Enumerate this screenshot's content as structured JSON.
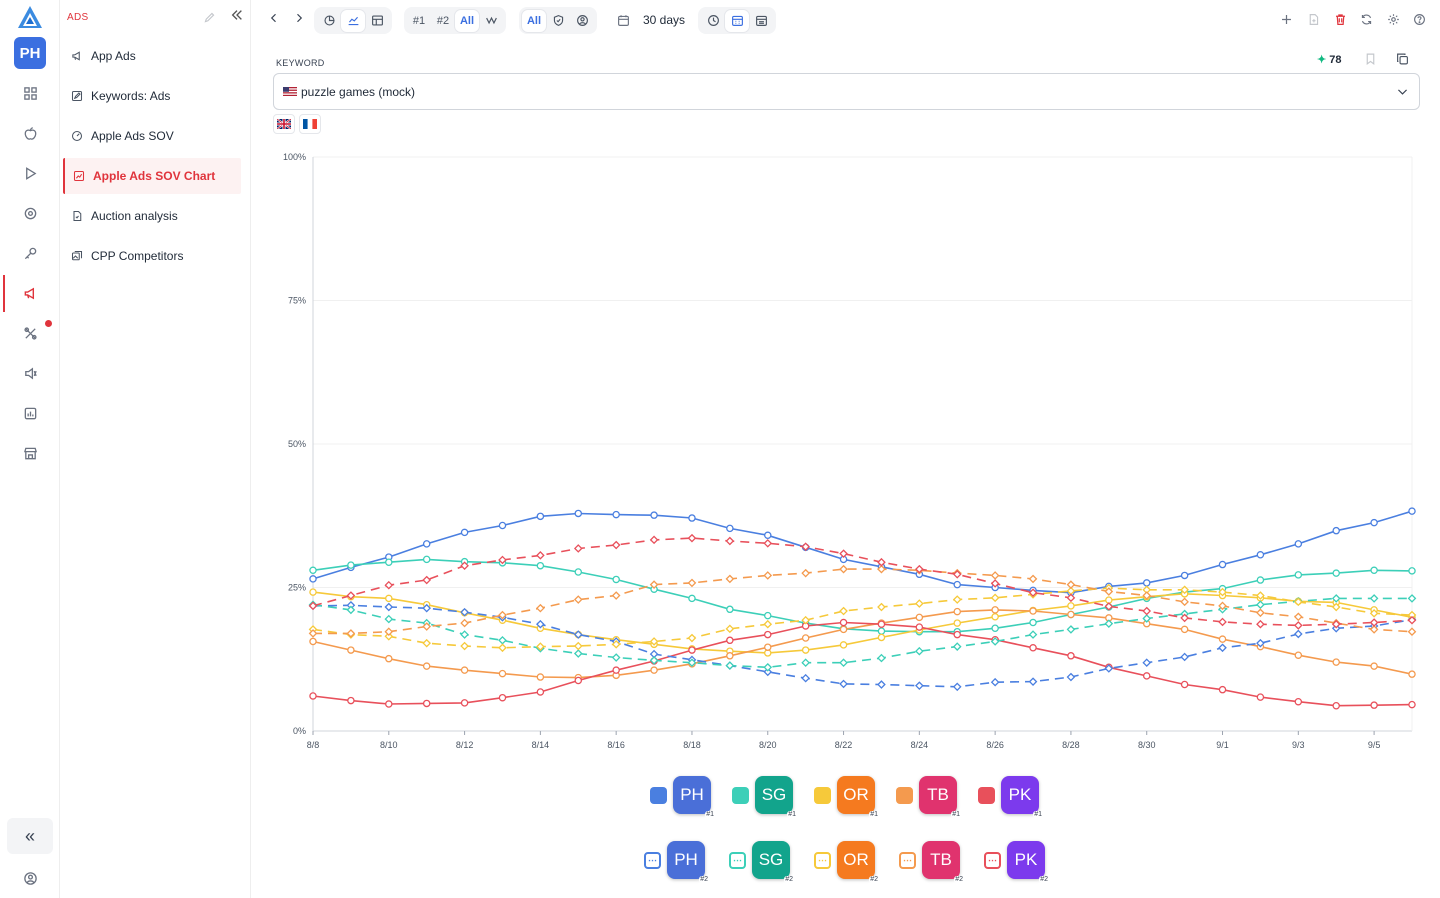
{
  "rail": {
    "avatar": "PH",
    "icons": [
      "grid-icon",
      "apple-icon",
      "play-icon",
      "eye-icon",
      "key-icon",
      "megaphone-icon",
      "tools-icon",
      "speaker-icon",
      "report-icon",
      "store-icon"
    ],
    "collapse_label": "«"
  },
  "sidebar": {
    "title": "ADS",
    "items": [
      {
        "label": "App Ads",
        "icon": "megaphone-icon"
      },
      {
        "label": "Keywords: Ads",
        "icon": "edit-box-icon"
      },
      {
        "label": "Apple Ads SOV",
        "icon": "gauge-icon"
      },
      {
        "label": "Apple Ads SOV Chart",
        "icon": "chart-box-icon",
        "active": true
      },
      {
        "label": "Auction analysis",
        "icon": "document-icon"
      },
      {
        "label": "CPP Competitors",
        "icon": "gallery-icon"
      }
    ]
  },
  "toolbar": {
    "rank_buttons": [
      "#1",
      "#2",
      "All"
    ],
    "filter_all": "All",
    "range_label": "30 days"
  },
  "keyword": {
    "label": "KEYWORD",
    "score": "78",
    "value": "puzzle games (mock)"
  },
  "colors": {
    "PH": "#4a7fe0",
    "SG": "#3ccfb8",
    "OR": "#f6c93a",
    "TB": "#f49a4e",
    "PK": "#e8505b"
  },
  "chart_data": {
    "type": "line",
    "x": [
      "8/8",
      "8/9",
      "8/10",
      "8/11",
      "8/12",
      "8/13",
      "8/14",
      "8/15",
      "8/16",
      "8/17",
      "8/18",
      "8/19",
      "8/20",
      "8/21",
      "8/22",
      "8/23",
      "8/24",
      "8/25",
      "8/26",
      "8/27",
      "8/28",
      "8/29",
      "8/30",
      "8/31",
      "9/1",
      "9/2",
      "9/3",
      "9/4",
      "9/5",
      "9/6"
    ],
    "x_tick_labels": [
      "8/8",
      "8/10",
      "8/12",
      "8/14",
      "8/16",
      "8/18",
      "8/20",
      "8/22",
      "8/24",
      "8/26",
      "8/28",
      "8/30",
      "9/1",
      "9/3",
      "9/5"
    ],
    "y_tick_labels": [
      "0%",
      "25%",
      "50%",
      "75%",
      "100%"
    ],
    "ylim": [
      0,
      100
    ],
    "series": [
      {
        "name": "PH",
        "rank": "#1",
        "color": "#4a7fe0",
        "style": "solid",
        "values": [
          26.5,
          28.5,
          30.3,
          32.6,
          34.6,
          35.8,
          37.4,
          37.9,
          37.7,
          37.6,
          37.1,
          35.3,
          34.1,
          32.0,
          29.9,
          28.6,
          27.3,
          25.5,
          25.0,
          24.5,
          24.1,
          25.2,
          25.8,
          27.1,
          29.0,
          30.7,
          32.6,
          34.9,
          36.3,
          38.3
        ]
      },
      {
        "name": "SG",
        "rank": "#1",
        "color": "#3ccfb8",
        "style": "solid",
        "values": [
          28.0,
          28.9,
          29.4,
          29.9,
          29.5,
          29.3,
          28.8,
          27.7,
          26.4,
          24.7,
          23.1,
          21.2,
          20.1,
          18.8,
          17.8,
          17.4,
          17.3,
          17.3,
          17.9,
          18.9,
          20.3,
          21.6,
          23.1,
          24.2,
          24.8,
          26.3,
          27.2,
          27.5,
          28.0,
          27.9
        ]
      },
      {
        "name": "OR",
        "rank": "#1",
        "color": "#f6c93a",
        "style": "solid",
        "values": [
          24.2,
          23.4,
          23.1,
          22.0,
          20.6,
          19.3,
          17.9,
          16.8,
          15.9,
          15.1,
          14.3,
          13.9,
          13.6,
          14.1,
          15.0,
          16.3,
          17.6,
          18.8,
          19.9,
          21.0,
          21.8,
          22.8,
          23.4,
          23.9,
          23.6,
          23.2,
          22.6,
          22.4,
          21.1,
          19.8
        ]
      },
      {
        "name": "TB",
        "rank": "#1",
        "color": "#f49a4e",
        "style": "solid",
        "values": [
          15.6,
          14.1,
          12.6,
          11.3,
          10.6,
          10.0,
          9.4,
          9.3,
          9.7,
          10.6,
          11.7,
          13.1,
          14.6,
          16.2,
          17.7,
          18.8,
          19.8,
          20.8,
          21.1,
          20.9,
          20.3,
          19.7,
          18.7,
          17.7,
          16.0,
          14.7,
          13.2,
          12.0,
          11.3,
          9.9
        ]
      },
      {
        "name": "PK",
        "rank": "#1",
        "color": "#e8505b",
        "style": "solid",
        "values": [
          6.1,
          5.3,
          4.7,
          4.8,
          4.9,
          5.8,
          6.8,
          8.8,
          10.6,
          12.2,
          14.1,
          15.8,
          16.8,
          18.3,
          18.9,
          18.6,
          18.1,
          16.8,
          15.9,
          14.5,
          13.1,
          11.1,
          9.6,
          8.1,
          7.2,
          5.9,
          5.1,
          4.4,
          4.5,
          4.6
        ]
      },
      {
        "name": "PH",
        "rank": "#2",
        "color": "#4a7fe0",
        "style": "dashed",
        "values": [
          21.8,
          21.9,
          21.6,
          21.4,
          20.7,
          19.8,
          18.6,
          16.8,
          15.6,
          13.4,
          12.4,
          11.4,
          10.3,
          9.2,
          8.2,
          8.1,
          7.9,
          7.7,
          8.5,
          8.6,
          9.4,
          10.9,
          11.9,
          12.9,
          14.5,
          15.3,
          16.9,
          17.9,
          18.3,
          19.4
        ]
      },
      {
        "name": "SG",
        "rank": "#2",
        "color": "#3ccfb8",
        "style": "dashed",
        "values": [
          22.0,
          21.1,
          19.5,
          18.8,
          16.8,
          15.8,
          14.4,
          13.5,
          12.8,
          12.3,
          11.9,
          11.4,
          11.1,
          11.9,
          11.9,
          12.7,
          13.9,
          14.7,
          15.6,
          16.8,
          17.7,
          18.7,
          19.6,
          20.4,
          21.2,
          22.0,
          22.6,
          23.1,
          23.1,
          23.1
        ]
      },
      {
        "name": "OR",
        "rank": "#2",
        "color": "#f6c93a",
        "style": "dashed",
        "values": [
          17.7,
          16.8,
          16.5,
          15.3,
          14.8,
          14.5,
          14.7,
          14.8,
          15.1,
          15.6,
          16.2,
          17.8,
          18.6,
          19.3,
          20.9,
          21.6,
          22.2,
          22.9,
          23.2,
          23.8,
          24.4,
          24.9,
          24.6,
          24.6,
          24.2,
          23.6,
          22.5,
          21.6,
          20.5,
          20.2
        ]
      },
      {
        "name": "TB",
        "rank": "#2",
        "color": "#f49a4e",
        "style": "dashed",
        "values": [
          17.0,
          17.0,
          17.3,
          18.2,
          18.8,
          20.2,
          21.4,
          22.9,
          23.6,
          25.5,
          25.8,
          26.5,
          27.1,
          27.5,
          28.2,
          28.2,
          28.0,
          27.5,
          27.1,
          26.5,
          25.5,
          24.3,
          23.6,
          22.5,
          21.8,
          20.6,
          19.9,
          18.8,
          17.7,
          17.3
        ]
      },
      {
        "name": "PK",
        "rank": "#2",
        "color": "#e8505b",
        "style": "dashed",
        "values": [
          21.8,
          23.6,
          25.4,
          26.3,
          28.8,
          29.8,
          30.6,
          31.8,
          32.4,
          33.3,
          33.6,
          33.1,
          32.7,
          32.1,
          30.9,
          29.4,
          28.2,
          27.3,
          25.7,
          24.1,
          23.2,
          21.7,
          20.9,
          19.7,
          19.0,
          18.6,
          18.4,
          18.6,
          18.9,
          19.3
        ]
      }
    ]
  },
  "legend": [
    {
      "abbr": "PH",
      "rank": "#1",
      "color": "#4a7fe0"
    },
    {
      "abbr": "SG",
      "rank": "#1",
      "color": "#3ccfb8"
    },
    {
      "abbr": "OR",
      "rank": "#1",
      "color": "#f6c93a"
    },
    {
      "abbr": "TB",
      "rank": "#1",
      "color": "#f49a4e"
    },
    {
      "abbr": "PK",
      "rank": "#1",
      "color": "#e8505b"
    },
    {
      "abbr": "PH",
      "rank": "#2",
      "color": "#4a7fe0"
    },
    {
      "abbr": "SG",
      "rank": "#2",
      "color": "#3ccfb8"
    },
    {
      "abbr": "OR",
      "rank": "#2",
      "color": "#f6c93a"
    },
    {
      "abbr": "TB",
      "rank": "#2",
      "color": "#f49a4e"
    },
    {
      "abbr": "PK",
      "rank": "#2",
      "color": "#e8505b"
    }
  ],
  "badge_colors": {
    "PH": "#4a6fd8",
    "SG": "#12a48c",
    "OR": "#f57a1f",
    "TB": "#e0336e",
    "PK": "#7c3aed"
  }
}
